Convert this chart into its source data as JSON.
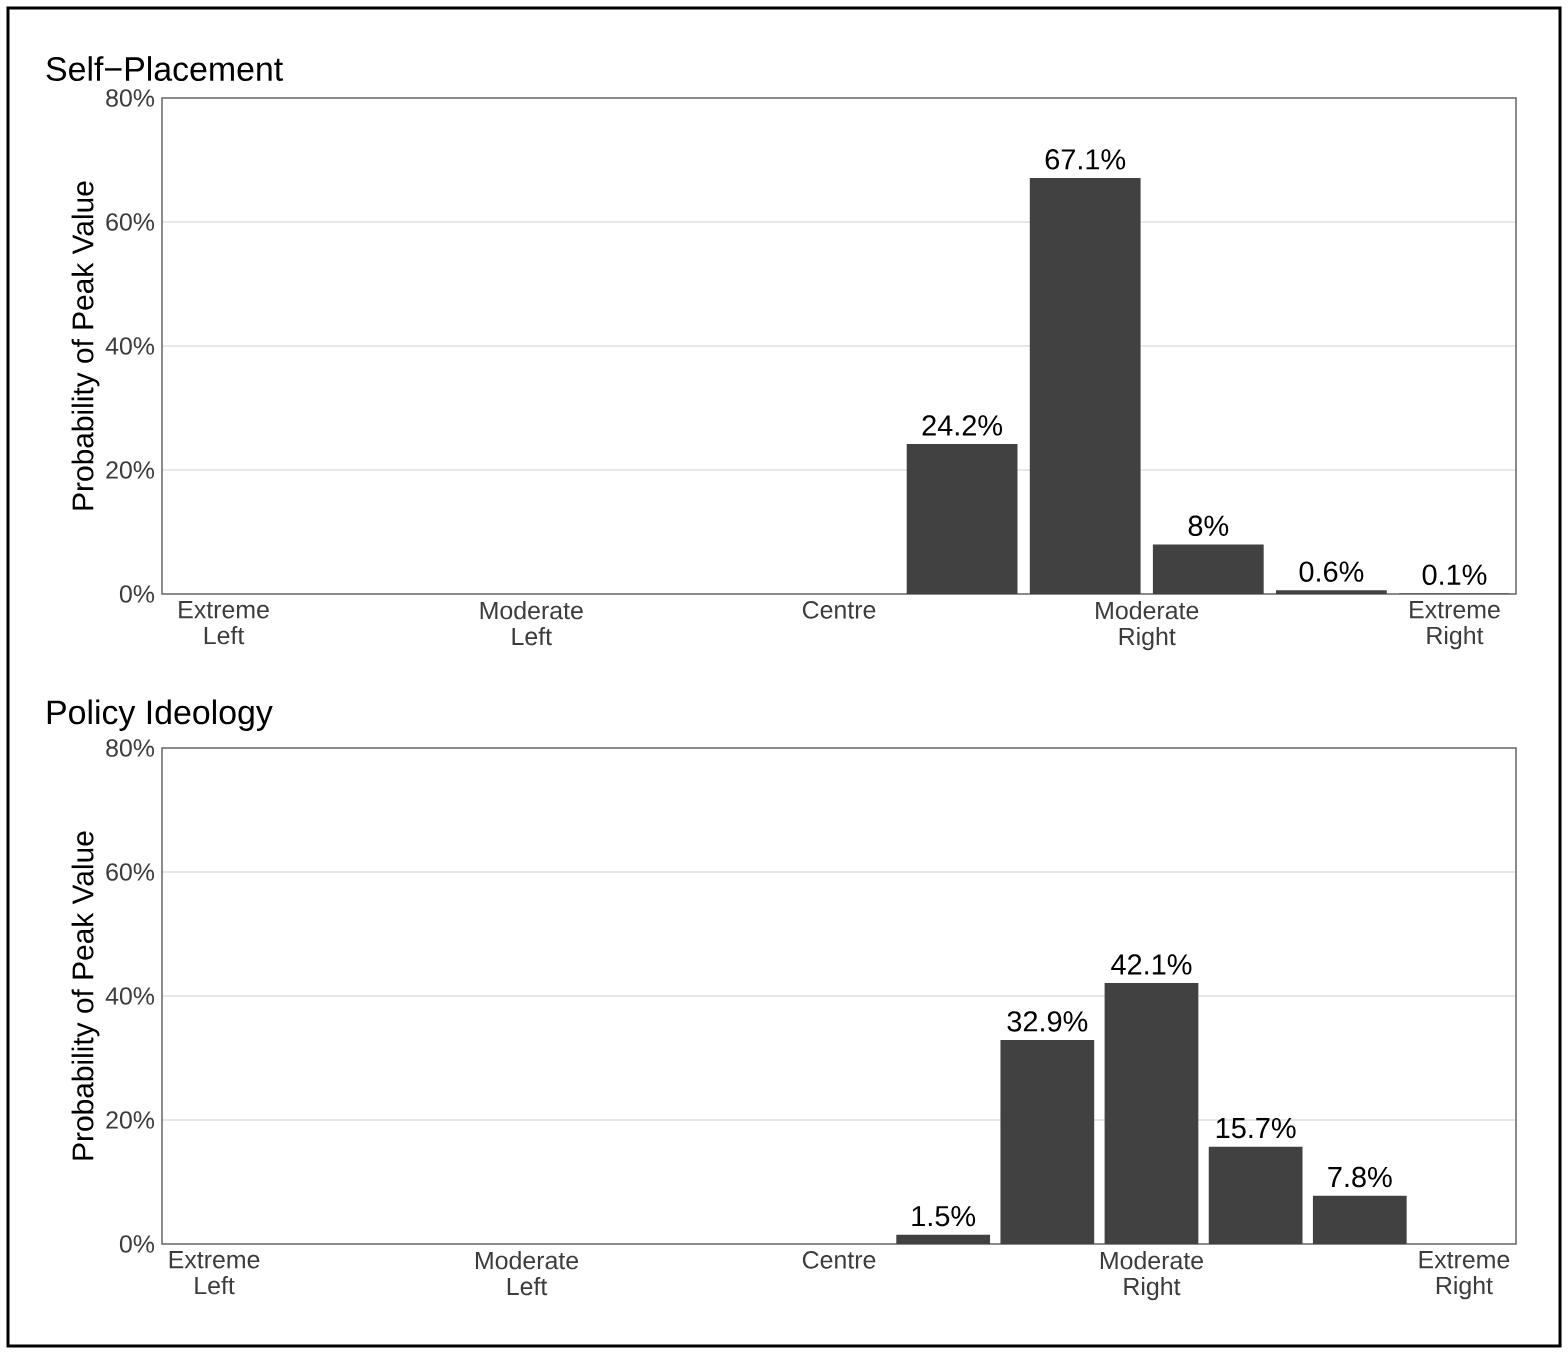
{
  "chart_data": [
    {
      "type": "bar",
      "title": "Self−Placement",
      "ylabel": "Probability of Peak Value",
      "color": "#414141",
      "categories": [
        "Extreme Left",
        null,
        null,
        null,
        null,
        "Moderate Left",
        null,
        null,
        null,
        null,
        "Centre",
        null,
        null,
        null,
        null,
        "Moderate Right",
        null,
        null,
        null,
        null,
        "Extreme Right"
      ],
      "values": [
        null,
        null,
        null,
        null,
        null,
        null,
        null,
        null,
        null,
        null,
        null,
        null,
        24.2,
        null,
        67.1,
        null,
        8,
        null,
        0.6,
        null,
        0.1
      ],
      "value_labels": [
        null,
        null,
        null,
        null,
        null,
        null,
        null,
        null,
        null,
        null,
        null,
        null,
        "24.2%",
        null,
        "67.1%",
        null,
        "8%",
        null,
        "0.6%",
        null,
        "0.1%"
      ],
      "ylim": [
        0,
        80
      ],
      "yticks": [
        {
          "value": 0,
          "label": "0%"
        },
        {
          "value": 20,
          "label": "20%"
        },
        {
          "value": 40,
          "label": "40%"
        },
        {
          "value": 60,
          "label": "60%"
        },
        {
          "value": 80,
          "label": "80%"
        }
      ],
      "grid": "y"
    },
    {
      "type": "bar",
      "title": "Policy Ideology",
      "ylabel": "Probability of Peak Value",
      "color": "#414141",
      "categories": [
        "Extreme Left",
        null,
        null,
        "Moderate Left",
        null,
        null,
        "Centre",
        null,
        null,
        "Moderate Right",
        null,
        null,
        "Extreme Right"
      ],
      "values": [
        null,
        null,
        null,
        null,
        null,
        null,
        null,
        1.5,
        32.9,
        42.1,
        15.7,
        7.8,
        null
      ],
      "value_labels": [
        null,
        null,
        null,
        null,
        null,
        null,
        null,
        "1.5%",
        "32.9%",
        "42.1%",
        "15.7%",
        "7.8%",
        null
      ],
      "ylim": [
        0,
        80
      ],
      "yticks": [
        {
          "value": 0,
          "label": "0%"
        },
        {
          "value": 20,
          "label": "20%"
        },
        {
          "value": 40,
          "label": "40%"
        },
        {
          "value": 60,
          "label": "60%"
        },
        {
          "value": 80,
          "label": "80%"
        }
      ],
      "grid": "y"
    }
  ]
}
